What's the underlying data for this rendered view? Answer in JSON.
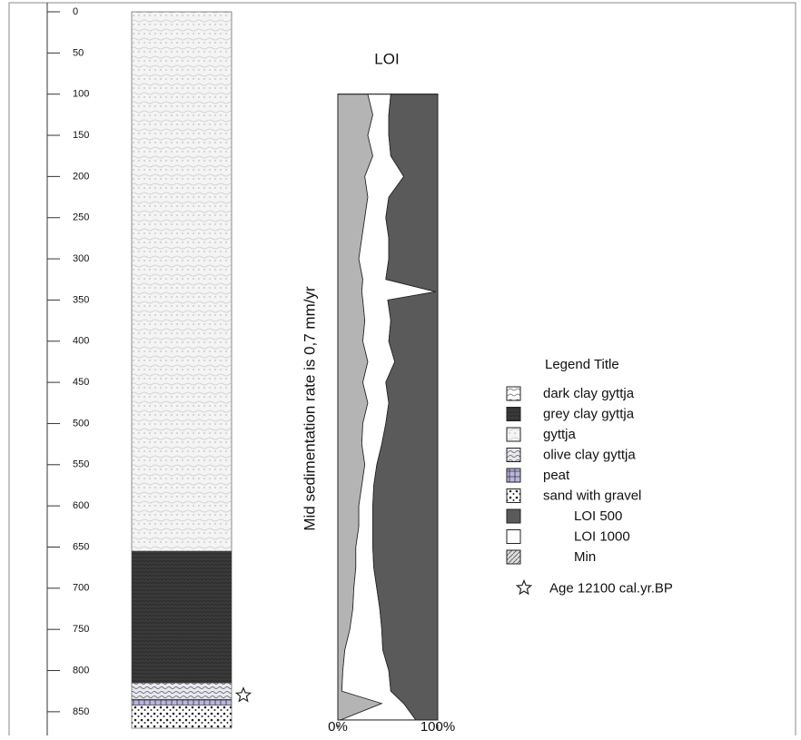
{
  "depth_axis": {
    "ylim": [
      0,
      870
    ],
    "yticks": [
      0,
      50,
      100,
      150,
      200,
      250,
      300,
      350,
      400,
      450,
      500,
      550,
      600,
      650,
      700,
      750,
      800,
      850
    ]
  },
  "legend": {
    "title": "Legend Title",
    "items": [
      {
        "label": "dark clay gyttja"
      },
      {
        "label": "grey clay gyttja",
        "intervals": [
          [
            655,
            815
          ]
        ]
      },
      {
        "label": "gyttja",
        "intervals": [
          [
            0,
            655
          ]
        ]
      },
      {
        "label": "olive clay gyttja",
        "intervals": [
          [
            815,
            835
          ]
        ]
      },
      {
        "label": "peat",
        "intervals": [
          [
            835,
            842
          ]
        ]
      },
      {
        "label": "sand with gravel",
        "intervals": [
          [
            842,
            870
          ]
        ]
      }
    ],
    "age_marker": {
      "label": "Age 12100 cal.yr.BP",
      "depth": 830
    }
  },
  "chart_data": {
    "type": "stacked-area",
    "title": "LOI",
    "ylabel": "Mid sedimentation rate is 0,7 mm/yr",
    "xlim": [
      0,
      100
    ],
    "xticks": [
      {
        "value": 0,
        "label": "0%"
      },
      {
        "value": 100,
        "label": "100%"
      }
    ],
    "depth": [
      100,
      125,
      150,
      175,
      200,
      225,
      250,
      275,
      300,
      325,
      340,
      350,
      375,
      400,
      425,
      450,
      475,
      500,
      525,
      550,
      575,
      600,
      625,
      650,
      675,
      700,
      725,
      750,
      775,
      800,
      825,
      840,
      860
    ],
    "series": [
      {
        "name": "Min",
        "color": "#b4b4b4",
        "values": [
          30,
          35,
          30,
          35,
          27,
          30,
          27,
          24,
          21,
          25,
          24,
          25,
          27,
          25,
          30,
          25,
          30,
          25,
          24,
          27,
          24,
          21,
          21,
          18,
          18,
          16,
          15,
          12,
          7,
          5,
          4,
          44,
          3
        ]
      },
      {
        "name": "LOI 1000",
        "color": "#ffffff",
        "values": [
          23,
          16,
          21,
          18,
          39,
          21,
          21,
          27,
          30,
          23,
          74,
          25,
          26,
          26,
          27,
          23,
          21,
          23,
          20,
          12,
          12,
          14,
          14,
          17,
          18,
          23,
          27,
          32,
          38,
          46,
          49,
          22,
          75
        ]
      },
      {
        "name": "LOI 500",
        "color": "#5a5a5a",
        "values": [
          47,
          49,
          49,
          47,
          34,
          49,
          52,
          49,
          49,
          52,
          2,
          50,
          47,
          49,
          43,
          52,
          49,
          52,
          56,
          61,
          64,
          65,
          65,
          65,
          64,
          61,
          58,
          56,
          55,
          49,
          47,
          34,
          22
        ]
      }
    ]
  }
}
